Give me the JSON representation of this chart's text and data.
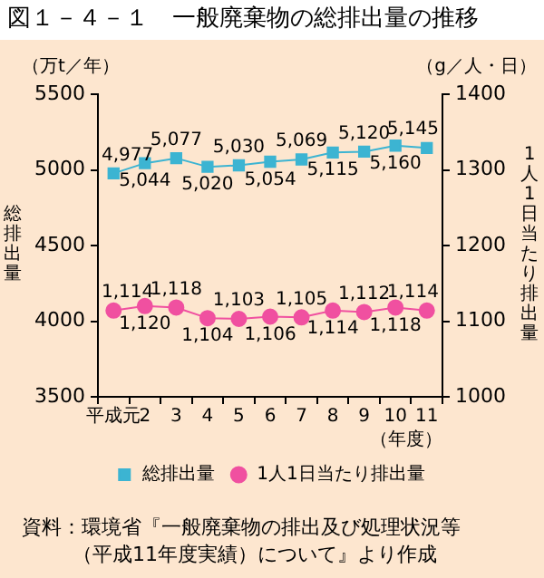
{
  "chart_data": {
    "type": "line",
    "title": "図１－４－１　一般廃棄物の総排出量の推移",
    "ylabel": "総排出量",
    "y2label": "1人1日当たり排出量",
    "xlabel": "（年度）",
    "categories": [
      "平成元",
      "2",
      "3",
      "4",
      "5",
      "6",
      "7",
      "8",
      "9",
      "10",
      "11"
    ],
    "series": [
      {
        "name": "総排出量",
        "color": "#3cb4d2",
        "marker": "square",
        "values": [
          4977,
          5044,
          5077,
          5020,
          5030,
          5054,
          5069,
          5115,
          5120,
          5160,
          5145
        ],
        "value_labels": [
          "4,977",
          "5,044",
          "5,077",
          "5,020",
          "5,030",
          "5,054",
          "5,069",
          "5,115",
          "5,120",
          "5,160",
          "5,145"
        ]
      },
      {
        "name": "1人1日当たり排出量",
        "color": "#f050a0",
        "marker": "circle",
        "axis": "y2",
        "values": [
          1114,
          1120,
          1118,
          1104,
          1103,
          1106,
          1105,
          1114,
          1112,
          1118,
          1114
        ],
        "value_labels": [
          "1,114",
          "1,120",
          "1,118",
          "1,104",
          "1,103",
          "1,106",
          "1,105",
          "1,114",
          "1,112",
          "1,118",
          "1,114"
        ]
      }
    ],
    "ylim": [
      3500,
      5500
    ],
    "yticks": [
      3500,
      4000,
      4500,
      5000,
      5500
    ],
    "y2lim": [
      1000,
      1400
    ],
    "y2ticks": [
      1000,
      1100,
      1200,
      1300,
      1400
    ],
    "grid": false,
    "legend": "bottom",
    "annotations": [
      "（万t／年）",
      "（g／人・日）",
      "資料：環境省『一般廃棄物の排出及び処理状況等",
      "（平成11年度実績）について』より作成"
    ]
  }
}
